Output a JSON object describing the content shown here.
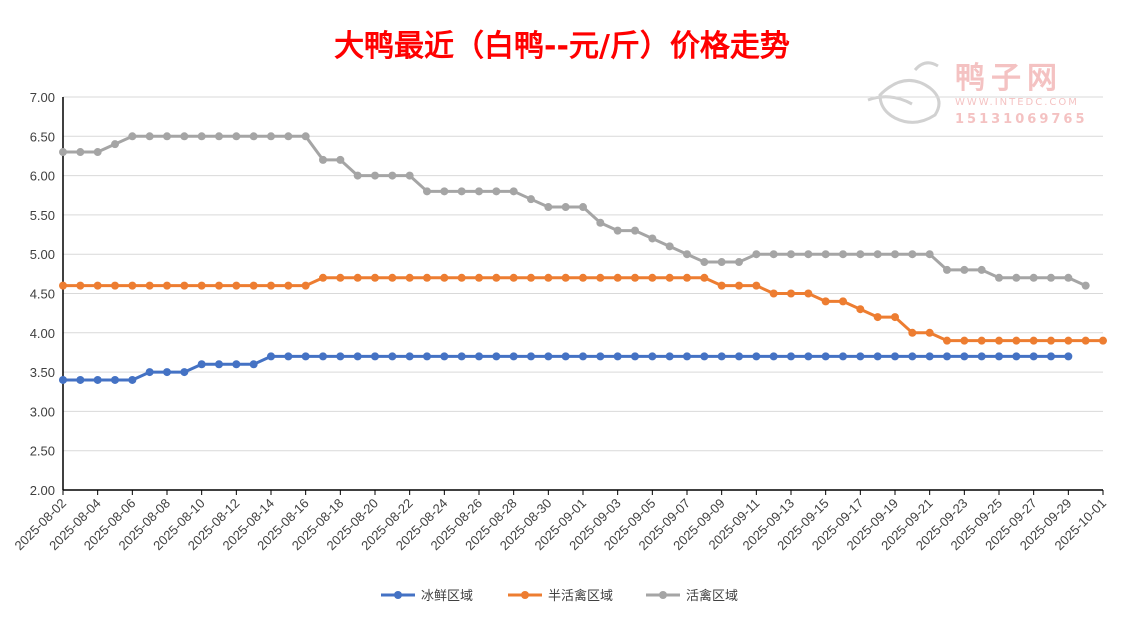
{
  "chart_data": {
    "type": "line",
    "title": "大鸭最近（白鸭--元/斤）价格走势",
    "xlabel": "",
    "ylabel": "",
    "ylim": [
      2.0,
      7.0
    ],
    "yticks": [
      "2.00",
      "2.50",
      "3.00",
      "3.50",
      "4.00",
      "4.50",
      "5.00",
      "5.50",
      "6.00",
      "6.50",
      "7.00"
    ],
    "xlim": [
      "2025-08-02",
      "2025-10-01"
    ],
    "xticks": [
      "2025-08-02",
      "2025-08-04",
      "2025-08-06",
      "2025-08-08",
      "2025-08-10",
      "2025-08-12",
      "2025-08-14",
      "2025-08-16",
      "2025-08-18",
      "2025-08-20",
      "2025-08-22",
      "2025-08-24",
      "2025-08-26",
      "2025-08-28",
      "2025-08-30",
      "2025-09-01",
      "2025-09-03",
      "2025-09-05",
      "2025-09-07",
      "2025-09-09",
      "2025-09-11",
      "2025-09-13",
      "2025-09-15",
      "2025-09-17",
      "2025-09-19",
      "2025-09-21",
      "2025-09-23",
      "2025-09-25",
      "2025-09-27",
      "2025-09-29",
      "2025-10-01"
    ],
    "grid": "horizontal",
    "legend_position": "bottom",
    "x_start_date": "2025-08-02",
    "series": [
      {
        "name": "冰鲜区域",
        "color": "#4472c4",
        "values": [
          3.4,
          3.4,
          3.4,
          3.4,
          3.4,
          3.5,
          3.5,
          3.5,
          3.6,
          3.6,
          3.6,
          3.6,
          3.7,
          3.7,
          3.7,
          3.7,
          3.7,
          3.7,
          3.7,
          3.7,
          3.7,
          3.7,
          3.7,
          3.7,
          3.7,
          3.7,
          3.7,
          3.7,
          3.7,
          3.7,
          3.7,
          3.7,
          3.7,
          3.7,
          3.7,
          3.7,
          3.7,
          3.7,
          3.7,
          3.7,
          3.7,
          3.7,
          3.7,
          3.7,
          3.7,
          3.7,
          3.7,
          3.7,
          3.7,
          3.7,
          3.7,
          3.7,
          3.7,
          3.7,
          3.7,
          3.7,
          3.7,
          3.7,
          3.7
        ]
      },
      {
        "name": "半活禽区域",
        "color": "#ed7d31",
        "values": [
          4.6,
          4.6,
          4.6,
          4.6,
          4.6,
          4.6,
          4.6,
          4.6,
          4.6,
          4.6,
          4.6,
          4.6,
          4.6,
          4.6,
          4.6,
          4.7,
          4.7,
          4.7,
          4.7,
          4.7,
          4.7,
          4.7,
          4.7,
          4.7,
          4.7,
          4.7,
          4.7,
          4.7,
          4.7,
          4.7,
          4.7,
          4.7,
          4.7,
          4.7,
          4.7,
          4.7,
          4.7,
          4.7,
          4.6,
          4.6,
          4.6,
          4.5,
          4.5,
          4.5,
          4.4,
          4.4,
          4.3,
          4.2,
          4.2,
          4.0,
          4.0,
          3.9,
          3.9,
          3.9,
          3.9,
          3.9,
          3.9,
          3.9,
          3.9,
          3.9,
          3.9
        ]
      },
      {
        "name": "活禽区域",
        "color": "#a5a5a5",
        "values": [
          6.3,
          6.3,
          6.3,
          6.4,
          6.5,
          6.5,
          6.5,
          6.5,
          6.5,
          6.5,
          6.5,
          6.5,
          6.5,
          6.5,
          6.5,
          6.2,
          6.2,
          6.0,
          6.0,
          6.0,
          6.0,
          5.8,
          5.8,
          5.8,
          5.8,
          5.8,
          5.8,
          5.7,
          5.6,
          5.6,
          5.6,
          5.4,
          5.3,
          5.3,
          5.2,
          5.1,
          5.0,
          4.9,
          4.9,
          4.9,
          5.0,
          5.0,
          5.0,
          5.0,
          5.0,
          5.0,
          5.0,
          5.0,
          5.0,
          5.0,
          5.0,
          4.8,
          4.8,
          4.8,
          4.7,
          4.7,
          4.7,
          4.7,
          4.7,
          4.6
        ]
      }
    ]
  },
  "watermark": {
    "brand": "鸭子网",
    "url": "WWW.INTEDC.COM",
    "phone": "15131069765"
  }
}
